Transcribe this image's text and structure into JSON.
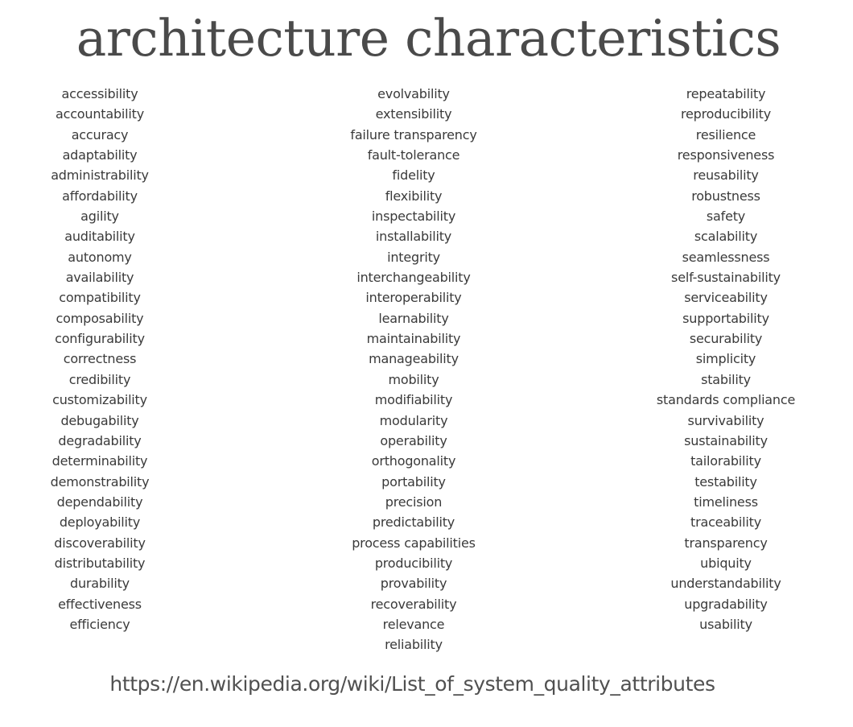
{
  "slide": {
    "title": "architecture characteristics",
    "columns": [
      {
        "items": [
          "accessibility",
          "accountability",
          "accuracy",
          "adaptability",
          "administrability",
          "affordability",
          "agility",
          "auditability",
          "autonomy",
          "availability",
          "compatibility",
          "composability",
          "configurability",
          "correctness",
          "credibility",
          "customizability",
          "debugability",
          "degradability",
          "determinability",
          "demonstrability",
          "dependability",
          "deployability",
          "discoverability",
          "distributability",
          "durability",
          "effectiveness",
          "efficiency"
        ]
      },
      {
        "items": [
          "evolvability",
          "extensibility",
          "failure transparency",
          "fault-tolerance",
          "fidelity",
          "flexibility",
          "inspectability",
          "installability",
          "integrity",
          "interchangeability",
          "interoperability",
          "learnability",
          "maintainability",
          "manageability",
          "mobility",
          "modifiability",
          "modularity",
          "operability",
          "orthogonality",
          "portability",
          "precision",
          "predictability",
          "process capabilities",
          "producibility",
          "provability",
          "recoverability",
          "relevance",
          "reliability"
        ]
      },
      {
        "items": [
          "repeatability",
          "reproducibility",
          "resilience",
          "responsiveness",
          "reusability",
          "robustness",
          "safety",
          "scalability",
          "seamlessness",
          "self-sustainability",
          "serviceability",
          "supportability",
          "securability",
          "simplicity",
          "stability",
          "standards compliance",
          "survivability",
          "sustainability",
          "tailorability",
          "testability",
          "timeliness",
          "traceability",
          "transparency",
          "ubiquity",
          "understandability",
          "upgradability",
          "usability"
        ]
      }
    ],
    "source_url": "https://en.wikipedia.org/wiki/List_of_system_quality_attributes"
  }
}
